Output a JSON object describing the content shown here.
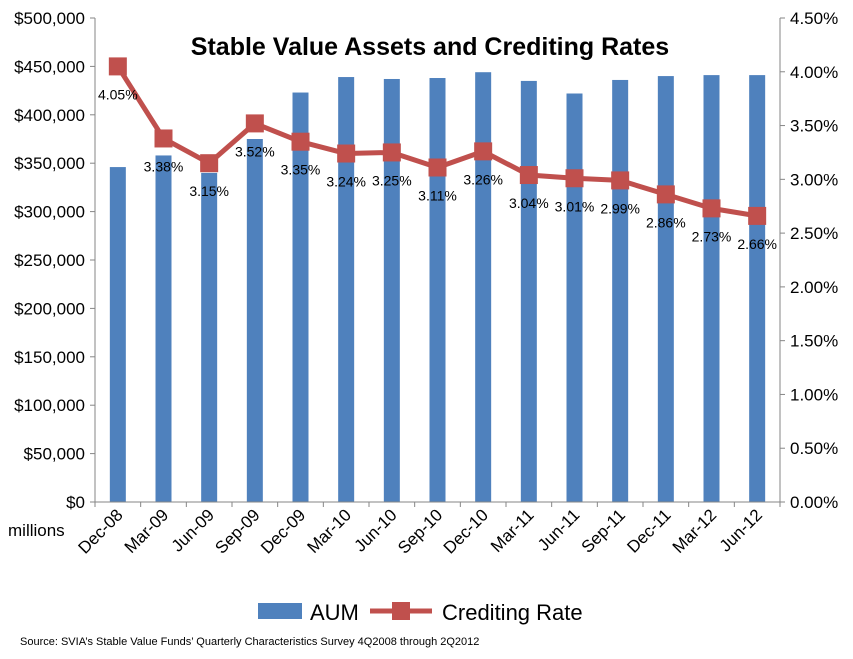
{
  "chart_data": {
    "type": "bar",
    "title": "Stable Value Assets and Crediting Rates",
    "categories": [
      "Dec-08",
      "Mar-09",
      "Jun-09",
      "Sep-09",
      "Dec-09",
      "Mar-10",
      "Jun-10",
      "Sep-10",
      "Dec-10",
      "Mar-11",
      "Jun-11",
      "Sep-11",
      "Dec-11",
      "Mar-12",
      "Jun-12"
    ],
    "series": [
      {
        "name": "AUM",
        "type": "bar",
        "axis": "left",
        "color": "#4F81BD",
        "values": [
          346000,
          358000,
          340000,
          375000,
          423000,
          439000,
          437000,
          438000,
          444000,
          435000,
          422000,
          436000,
          440000,
          441000,
          441000
        ]
      },
      {
        "name": "Crediting Rate",
        "type": "line",
        "axis": "right",
        "color": "#C0504D",
        "values": [
          4.05,
          3.38,
          3.15,
          3.52,
          3.35,
          3.24,
          3.25,
          3.11,
          3.26,
          3.04,
          3.01,
          2.99,
          2.86,
          2.73,
          2.66
        ],
        "labels": [
          "4.05%",
          "3.38%",
          "3.15%",
          "3.52%",
          "3.35%",
          "3.24%",
          "3.25%",
          "3.11%",
          "3.26%",
          "3.04%",
          "3.01%",
          "2.99%",
          "2.86%",
          "2.73%",
          "2.66%"
        ]
      }
    ],
    "y_left": {
      "range": [
        0,
        500000
      ],
      "ticks": [
        0,
        50000,
        100000,
        150000,
        200000,
        250000,
        300000,
        350000,
        400000,
        450000,
        500000
      ],
      "tick_labels": [
        "$0",
        "$50,000",
        "$100,000",
        "$150,000",
        "$200,000",
        "$250,000",
        "$300,000",
        "$350,000",
        "$400,000",
        "$450,000",
        "$500,000"
      ],
      "unit_label": "millions"
    },
    "y_right": {
      "range": [
        0,
        4.5
      ],
      "ticks": [
        0,
        0.5,
        1.0,
        1.5,
        2.0,
        2.5,
        3.0,
        3.5,
        4.0,
        4.5
      ],
      "tick_labels": [
        "0.00%",
        "0.50%",
        "1.00%",
        "1.50%",
        "2.00%",
        "2.50%",
        "3.00%",
        "3.50%",
        "4.00%",
        "4.50%"
      ]
    },
    "grid": false,
    "legend_position": "bottom",
    "source": "Source: SVIA’s Stable Value Funds’ Quarterly Characteristics Survey 4Q2008 through 2Q2012"
  }
}
